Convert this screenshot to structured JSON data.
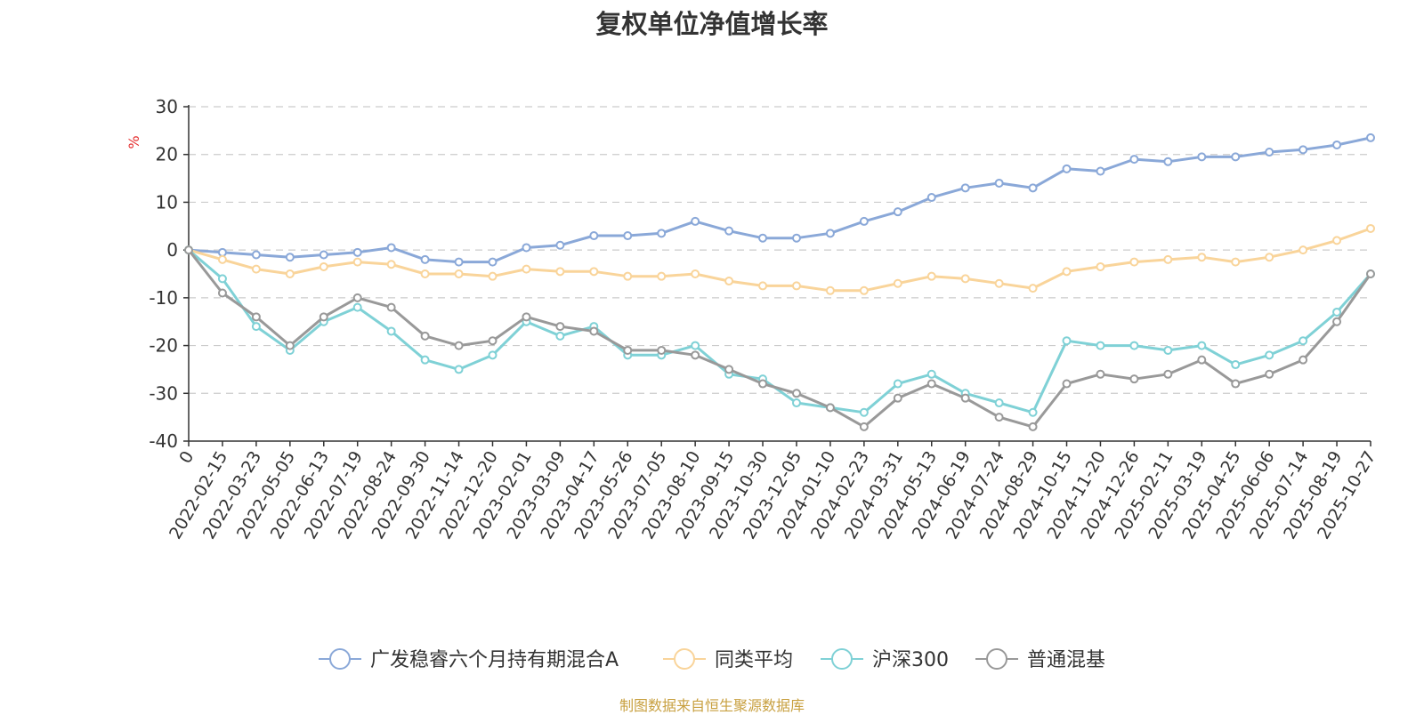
{
  "chart_data": {
    "type": "line",
    "title": "复权单位净值增长率",
    "ylabel": "%",
    "ylim": [
      -40,
      30
    ],
    "yticks": [
      30,
      20,
      10,
      0,
      -10,
      -20,
      -30,
      -40
    ],
    "grid": true,
    "legend_position": "bottom",
    "categories": [
      "0",
      "2022-02-15",
      "2022-03-23",
      "2022-05-05",
      "2022-06-13",
      "2022-07-19",
      "2022-08-24",
      "2022-09-30",
      "2022-11-14",
      "2022-12-20",
      "2023-02-01",
      "2023-03-09",
      "2023-04-17",
      "2023-05-26",
      "2023-07-05",
      "2023-08-10",
      "2023-09-15",
      "2023-10-30",
      "2023-12-05",
      "2024-01-10",
      "2024-02-23",
      "2024-03-31",
      "2024-05-13",
      "2024-06-19",
      "2024-07-24",
      "2024-08-29",
      "2024-10-15",
      "2024-11-20",
      "2024-12-26",
      "2025-02-11",
      "2025-03-19",
      "2025-04-25",
      "2025-06-06",
      "2025-07-14",
      "2025-08-19",
      "2025-10-27"
    ],
    "series": [
      {
        "name": "广发稳睿六个月持有期混合A",
        "color": "#8aa8d8",
        "values": [
          0,
          -0.5,
          -1,
          -1.5,
          -1,
          -0.5,
          0.5,
          -2,
          -2.5,
          -2.5,
          0.5,
          1,
          3,
          3,
          3.5,
          6,
          4,
          2.5,
          2.5,
          3.5,
          6,
          8,
          11,
          13,
          14,
          13,
          17,
          16.5,
          19,
          18.5,
          19.5,
          19.5,
          20.5,
          21,
          22,
          23.5
        ]
      },
      {
        "name": "同类平均",
        "color": "#f9d49a",
        "values": [
          0,
          -2,
          -4,
          -5,
          -3.5,
          -2.5,
          -3,
          -5,
          -5,
          -5.5,
          -4,
          -4.5,
          -4.5,
          -5.5,
          -5.5,
          -5,
          -6.5,
          -7.5,
          -7.5,
          -8.5,
          -8.5,
          -7,
          -5.5,
          -6,
          -7,
          -8,
          -4.5,
          -3.5,
          -2.5,
          -2,
          -1.5,
          -2.5,
          -1.5,
          0,
          2,
          4.5
        ]
      },
      {
        "name": "沪深300",
        "color": "#7fd1d6",
        "values": [
          0,
          -6,
          -16,
          -21,
          -15,
          -12,
          -17,
          -23,
          -25,
          -22,
          -15,
          -18,
          -16,
          -22,
          -22,
          -20,
          -26,
          -27,
          -32,
          -33,
          -34,
          -28,
          -26,
          -30,
          -32,
          -34,
          -19,
          -20,
          -20,
          -21,
          -20,
          -24,
          -22,
          -19,
          -13,
          -5
        ]
      },
      {
        "name": "普通混基",
        "color": "#999999",
        "values": [
          0,
          -9,
          -14,
          -20,
          -14,
          -10,
          -12,
          -18,
          -20,
          -19,
          -14,
          -16,
          -17,
          -21,
          -21,
          -22,
          -25,
          -28,
          -30,
          -33,
          -37,
          -31,
          -28,
          -31,
          -35,
          -37,
          -28,
          -26,
          -27,
          -26,
          -23,
          -28,
          -26,
          -23,
          -15,
          -5
        ]
      }
    ]
  },
  "credit": "制图数据来自恒生聚源数据库"
}
